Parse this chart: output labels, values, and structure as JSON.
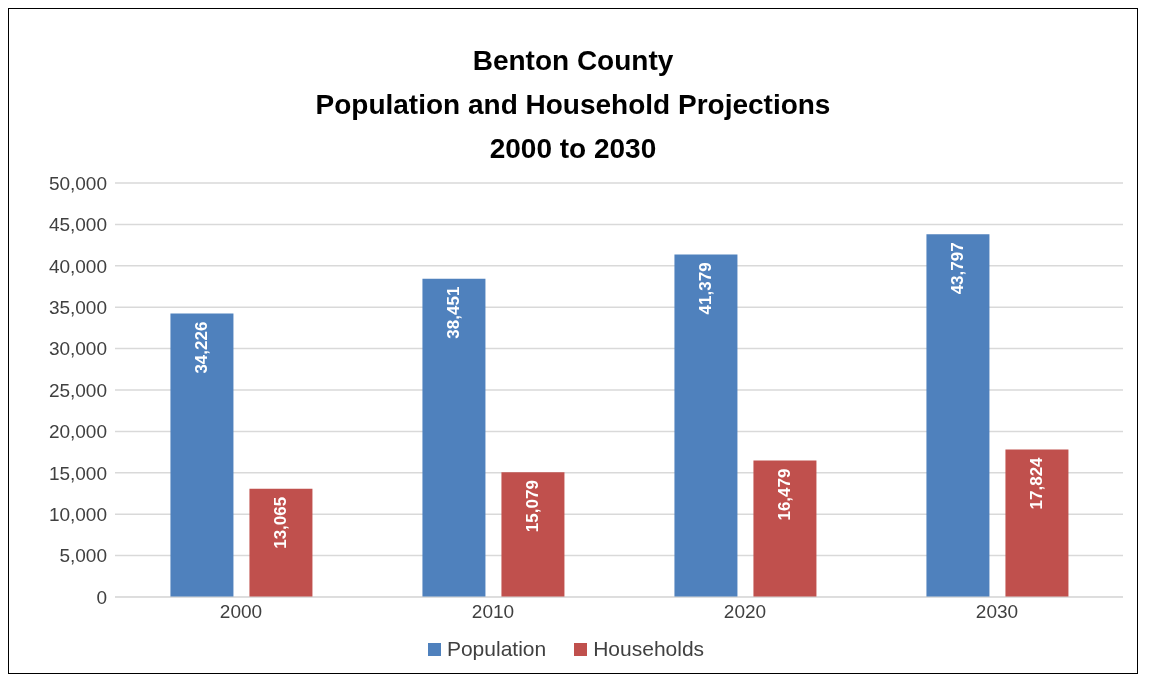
{
  "chart_data": {
    "type": "bar",
    "title": "Benton County\nPopulation and Household Projections\n2000 to 2030",
    "categories": [
      "2000",
      "2010",
      "2020",
      "2030"
    ],
    "series": [
      {
        "name": "Population",
        "color": "#4f81bd",
        "values": [
          34226,
          38451,
          41379,
          43797
        ],
        "value_labels": [
          "34,226",
          "38,451",
          "41,379",
          "43,797"
        ]
      },
      {
        "name": "Households",
        "color": "#c0504d",
        "values": [
          13065,
          15079,
          16479,
          17824
        ],
        "value_labels": [
          "13,065",
          "15,079",
          "16,479",
          "17,824"
        ]
      }
    ],
    "ylim": [
      0,
      50000
    ],
    "yticks": [
      0,
      {
        "value": 5000,
        "label": "5,000"
      },
      {
        "value": 10000,
        "label": "10,000"
      },
      {
        "value": 15000,
        "label": "15,000"
      },
      {
        "value": 20000,
        "label": "20,000"
      },
      {
        "value": 25000,
        "label": "25,000"
      },
      {
        "value": 30000,
        "label": "30,000"
      },
      {
        "value": 35000,
        "label": "35,000"
      },
      {
        "value": 40000,
        "label": "40,000"
      },
      {
        "value": 45000,
        "label": "45,000"
      },
      {
        "value": 50000,
        "label": "50,000"
      }
    ],
    "grid": "y",
    "legend": "bottom"
  }
}
